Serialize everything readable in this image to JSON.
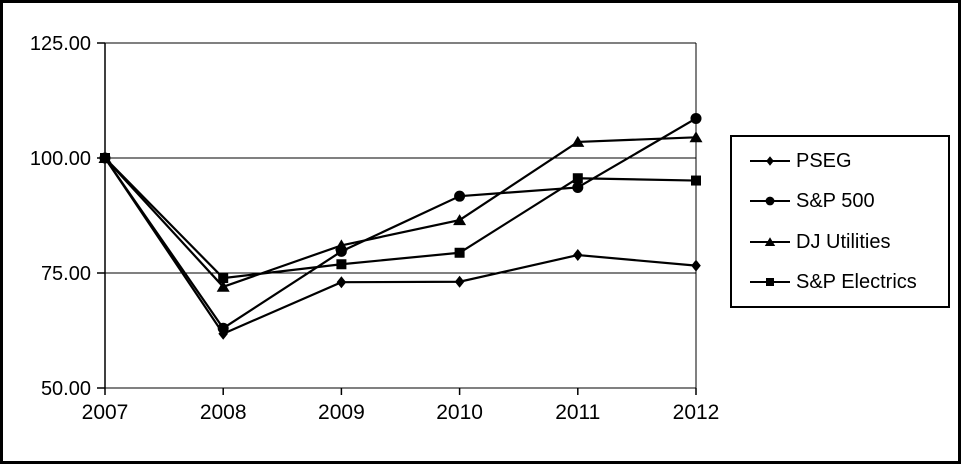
{
  "chart_data": {
    "type": "line",
    "title": "",
    "xlabel": "",
    "ylabel": "",
    "x_categories": [
      "2007",
      "2008",
      "2009",
      "2010",
      "2011",
      "2012"
    ],
    "ylim": [
      50,
      125
    ],
    "y_ticks": [
      {
        "value": 50,
        "label": "50.00"
      },
      {
        "value": 75,
        "label": "75.00"
      },
      {
        "value": 100,
        "label": "100.00"
      },
      {
        "value": 125,
        "label": "125.00"
      }
    ],
    "grid": "horizontal",
    "legend_position": "right",
    "line_color": "#000000",
    "series": [
      {
        "name": "PSEG",
        "marker": "diamond",
        "color": "#000000",
        "values": [
          100,
          61.8,
          73.0,
          73.1,
          78.9,
          76.6
        ]
      },
      {
        "name": "S&P 500",
        "marker": "circle",
        "color": "#000000",
        "values": [
          100,
          63.0,
          79.7,
          91.7,
          93.6,
          108.6
        ]
      },
      {
        "name": "DJ Utilities",
        "marker": "triangle",
        "color": "#000000",
        "values": [
          100,
          72.0,
          81.0,
          86.5,
          103.5,
          104.5
        ]
      },
      {
        "name": "S&P Electrics",
        "marker": "square",
        "color": "#000000",
        "values": [
          100,
          73.9,
          76.9,
          79.4,
          95.6,
          95.1
        ]
      }
    ]
  }
}
